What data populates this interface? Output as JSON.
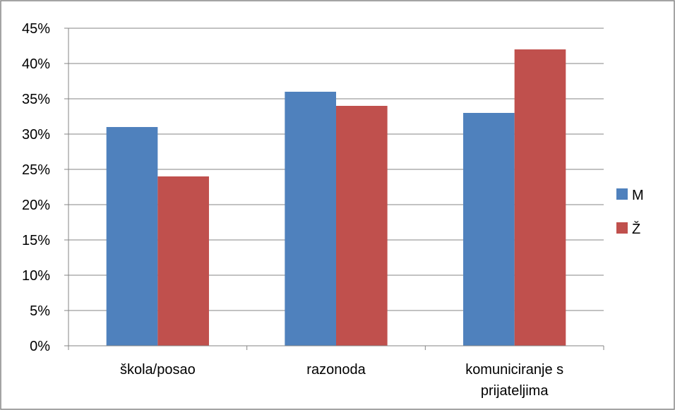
{
  "chart_data": {
    "type": "bar",
    "categories": [
      "škola/posao",
      "razonoda",
      "komuniciranje s prijateljima"
    ],
    "category_lines": [
      [
        "škola/posao"
      ],
      [
        "razonoda"
      ],
      [
        "komuniciranje s",
        "prijateljima"
      ]
    ],
    "series": [
      {
        "name": "M",
        "values": [
          31,
          36,
          33
        ],
        "color": "#4F81BD"
      },
      {
        "name": "Ž",
        "values": [
          24,
          34,
          42
        ],
        "color": "#C0504D"
      }
    ],
    "y_ticks": [
      "0%",
      "5%",
      "10%",
      "15%",
      "20%",
      "25%",
      "30%",
      "35%",
      "40%",
      "45%"
    ],
    "ylim": [
      0,
      45
    ],
    "y_step": 5,
    "grid": true,
    "legend_position": "right",
    "title": "",
    "xlabel": "",
    "ylabel": ""
  }
}
